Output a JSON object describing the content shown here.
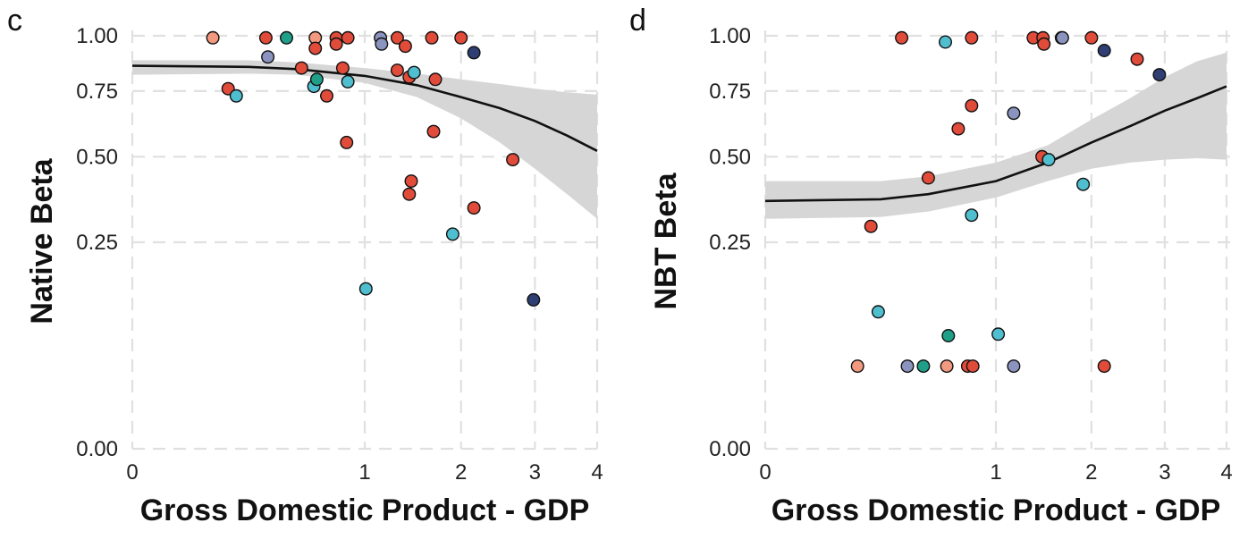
{
  "palette": {
    "red": "#e04b3a",
    "salmon": "#f2997f",
    "teal": "#1f9e88",
    "cyan": "#4fbfd0",
    "lavender": "#8b93bf",
    "navy": "#2f3e73"
  },
  "chart_data": [
    {
      "type": "scatter",
      "panel_label": "c",
      "title": "",
      "xlabel": "Gross Domestic Product - GDP",
      "ylabel": "Native Beta",
      "x_scale": "sqrt",
      "y_scale": "sqrt",
      "xlim": [
        0,
        4
      ],
      "ylim": [
        0,
        1
      ],
      "xticks": [
        0,
        1,
        2,
        3,
        4
      ],
      "xtick_labels": [
        "0",
        "1",
        "2",
        "3",
        "4"
      ],
      "yticks": [
        0,
        0.25,
        0.5,
        0.75,
        1.0
      ],
      "ytick_labels": [
        "0.00",
        "0.25",
        "0.50",
        "0.75",
        "1.00"
      ],
      "grid": true,
      "fit_trend": "decreasing",
      "fit": {
        "x": [
          0,
          0.25,
          0.5,
          1,
          1.5,
          2,
          2.5,
          3,
          3.5,
          4
        ],
        "y": [
          0.86,
          0.855,
          0.845,
          0.815,
          0.775,
          0.725,
          0.68,
          0.63,
          0.575,
          0.52
        ],
        "lower": [
          0.82,
          0.825,
          0.82,
          0.785,
          0.725,
          0.64,
          0.55,
          0.46,
          0.38,
          0.31
        ],
        "upper": [
          0.885,
          0.885,
          0.875,
          0.85,
          0.825,
          0.8,
          0.78,
          0.76,
          0.745,
          0.735
        ]
      },
      "points": [
        {
          "x": 0.12,
          "y": 0.99,
          "color": "salmon"
        },
        {
          "x": 0.17,
          "y": 0.76,
          "color": "red"
        },
        {
          "x": 0.2,
          "y": 0.73,
          "color": "cyan"
        },
        {
          "x": 0.33,
          "y": 0.99,
          "color": "red"
        },
        {
          "x": 0.34,
          "y": 0.9,
          "color": "lavender"
        },
        {
          "x": 0.44,
          "y": 0.99,
          "color": "teal"
        },
        {
          "x": 0.53,
          "y": 0.85,
          "color": "red"
        },
        {
          "x": 0.62,
          "y": 0.99,
          "color": "salmon"
        },
        {
          "x": 0.62,
          "y": 0.94,
          "color": "red"
        },
        {
          "x": 0.61,
          "y": 0.77,
          "color": "cyan"
        },
        {
          "x": 0.63,
          "y": 0.8,
          "color": "teal"
        },
        {
          "x": 0.7,
          "y": 0.73,
          "color": "red"
        },
        {
          "x": 0.77,
          "y": 0.99,
          "color": "red"
        },
        {
          "x": 0.77,
          "y": 0.96,
          "color": "red"
        },
        {
          "x": 0.82,
          "y": 0.85,
          "color": "red"
        },
        {
          "x": 0.86,
          "y": 0.99,
          "color": "red"
        },
        {
          "x": 0.85,
          "y": 0.55,
          "color": "red"
        },
        {
          "x": 0.86,
          "y": 0.79,
          "color": "cyan"
        },
        {
          "x": 1.01,
          "y": 0.15,
          "color": "cyan"
        },
        {
          "x": 1.14,
          "y": 0.99,
          "color": "lavender"
        },
        {
          "x": 1.15,
          "y": 0.96,
          "color": "lavender"
        },
        {
          "x": 1.3,
          "y": 0.99,
          "color": "red"
        },
        {
          "x": 1.3,
          "y": 0.84,
          "color": "red"
        },
        {
          "x": 1.38,
          "y": 0.95,
          "color": "red"
        },
        {
          "x": 1.42,
          "y": 0.81,
          "color": "red"
        },
        {
          "x": 1.47,
          "y": 0.83,
          "color": "cyan"
        },
        {
          "x": 1.44,
          "y": 0.42,
          "color": "red"
        },
        {
          "x": 1.42,
          "y": 0.38,
          "color": "red"
        },
        {
          "x": 1.66,
          "y": 0.99,
          "color": "red"
        },
        {
          "x": 1.7,
          "y": 0.8,
          "color": "red"
        },
        {
          "x": 1.68,
          "y": 0.59,
          "color": "red"
        },
        {
          "x": 1.9,
          "y": 0.27,
          "color": "cyan"
        },
        {
          "x": 2.0,
          "y": 0.99,
          "color": "red"
        },
        {
          "x": 2.16,
          "y": 0.92,
          "color": "navy"
        },
        {
          "x": 2.16,
          "y": 0.34,
          "color": "red"
        },
        {
          "x": 2.68,
          "y": 0.49,
          "color": "red"
        },
        {
          "x": 2.98,
          "y": 0.13,
          "color": "navy"
        }
      ]
    },
    {
      "type": "scatter",
      "panel_label": "d",
      "title": "",
      "xlabel": "Gross Domestic Product - GDP",
      "ylabel": "NBT Beta",
      "x_scale": "sqrt",
      "y_scale": "sqrt",
      "xlim": [
        0,
        4
      ],
      "ylim": [
        0,
        1
      ],
      "xticks": [
        0,
        1,
        2,
        3,
        4
      ],
      "xtick_labels": [
        "0",
        "1",
        "2",
        "3",
        "4"
      ],
      "yticks": [
        0,
        0.25,
        0.5,
        0.75,
        1.0
      ],
      "ytick_labels": [
        "0.00",
        "0.25",
        "0.50",
        "0.75",
        "1.00"
      ],
      "grid": true,
      "fit_trend": "increasing",
      "fit": {
        "x": [
          0,
          0.25,
          0.5,
          1,
          1.5,
          2,
          2.5,
          3,
          3.5,
          4
        ],
        "y": [
          0.36,
          0.365,
          0.38,
          0.42,
          0.48,
          0.55,
          0.61,
          0.67,
          0.72,
          0.77
        ],
        "lower": [
          0.31,
          0.315,
          0.33,
          0.37,
          0.42,
          0.46,
          0.48,
          0.49,
          0.495,
          0.49
        ],
        "upper": [
          0.42,
          0.42,
          0.435,
          0.48,
          0.54,
          0.635,
          0.72,
          0.81,
          0.88,
          0.92
        ]
      },
      "points": [
        {
          "x": 0.35,
          "y": 0.99,
          "color": "red"
        },
        {
          "x": 0.61,
          "y": 0.97,
          "color": "cyan"
        },
        {
          "x": 0.8,
          "y": 0.99,
          "color": "red"
        },
        {
          "x": 1.35,
          "y": 0.99,
          "color": "red"
        },
        {
          "x": 1.45,
          "y": 0.99,
          "color": "red"
        },
        {
          "x": 1.46,
          "y": 0.96,
          "color": "red"
        },
        {
          "x": 1.65,
          "y": 0.99,
          "color": "navy"
        },
        {
          "x": 1.66,
          "y": 0.99,
          "color": "lavender"
        },
        {
          "x": 2.0,
          "y": 0.99,
          "color": "red"
        },
        {
          "x": 2.16,
          "y": 0.93,
          "color": "navy"
        },
        {
          "x": 2.6,
          "y": 0.89,
          "color": "red"
        },
        {
          "x": 2.92,
          "y": 0.82,
          "color": "navy"
        },
        {
          "x": 0.7,
          "y": 0.6,
          "color": "red"
        },
        {
          "x": 0.8,
          "y": 0.69,
          "color": "red"
        },
        {
          "x": 1.16,
          "y": 0.66,
          "color": "lavender"
        },
        {
          "x": 0.5,
          "y": 0.43,
          "color": "red"
        },
        {
          "x": 1.44,
          "y": 0.5,
          "color": "red"
        },
        {
          "x": 1.51,
          "y": 0.49,
          "color": "cyan"
        },
        {
          "x": 1.9,
          "y": 0.41,
          "color": "cyan"
        },
        {
          "x": 0.8,
          "y": 0.32,
          "color": "cyan"
        },
        {
          "x": 0.21,
          "y": 0.29,
          "color": "red"
        },
        {
          "x": 0.24,
          "y": 0.11,
          "color": "cyan"
        },
        {
          "x": 0.63,
          "y": 0.075,
          "color": "teal"
        },
        {
          "x": 1.02,
          "y": 0.077,
          "color": "cyan"
        },
        {
          "x": 0.16,
          "y": 0.04,
          "color": "salmon"
        },
        {
          "x": 0.38,
          "y": 0.04,
          "color": "lavender"
        },
        {
          "x": 0.47,
          "y": 0.04,
          "color": "teal"
        },
        {
          "x": 0.62,
          "y": 0.04,
          "color": "salmon"
        },
        {
          "x": 0.77,
          "y": 0.04,
          "color": "red"
        },
        {
          "x": 0.81,
          "y": 0.04,
          "color": "red"
        },
        {
          "x": 1.16,
          "y": 0.04,
          "color": "lavender"
        },
        {
          "x": 2.16,
          "y": 0.04,
          "color": "red"
        }
      ]
    }
  ]
}
